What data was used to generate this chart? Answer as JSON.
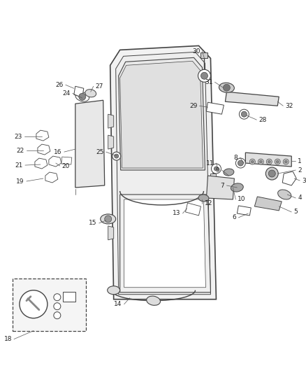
{
  "bg_color": "#ffffff",
  "lc": "#444444",
  "tc": "#222222",
  "fig_width": 4.38,
  "fig_height": 5.33,
  "dpi": 100
}
